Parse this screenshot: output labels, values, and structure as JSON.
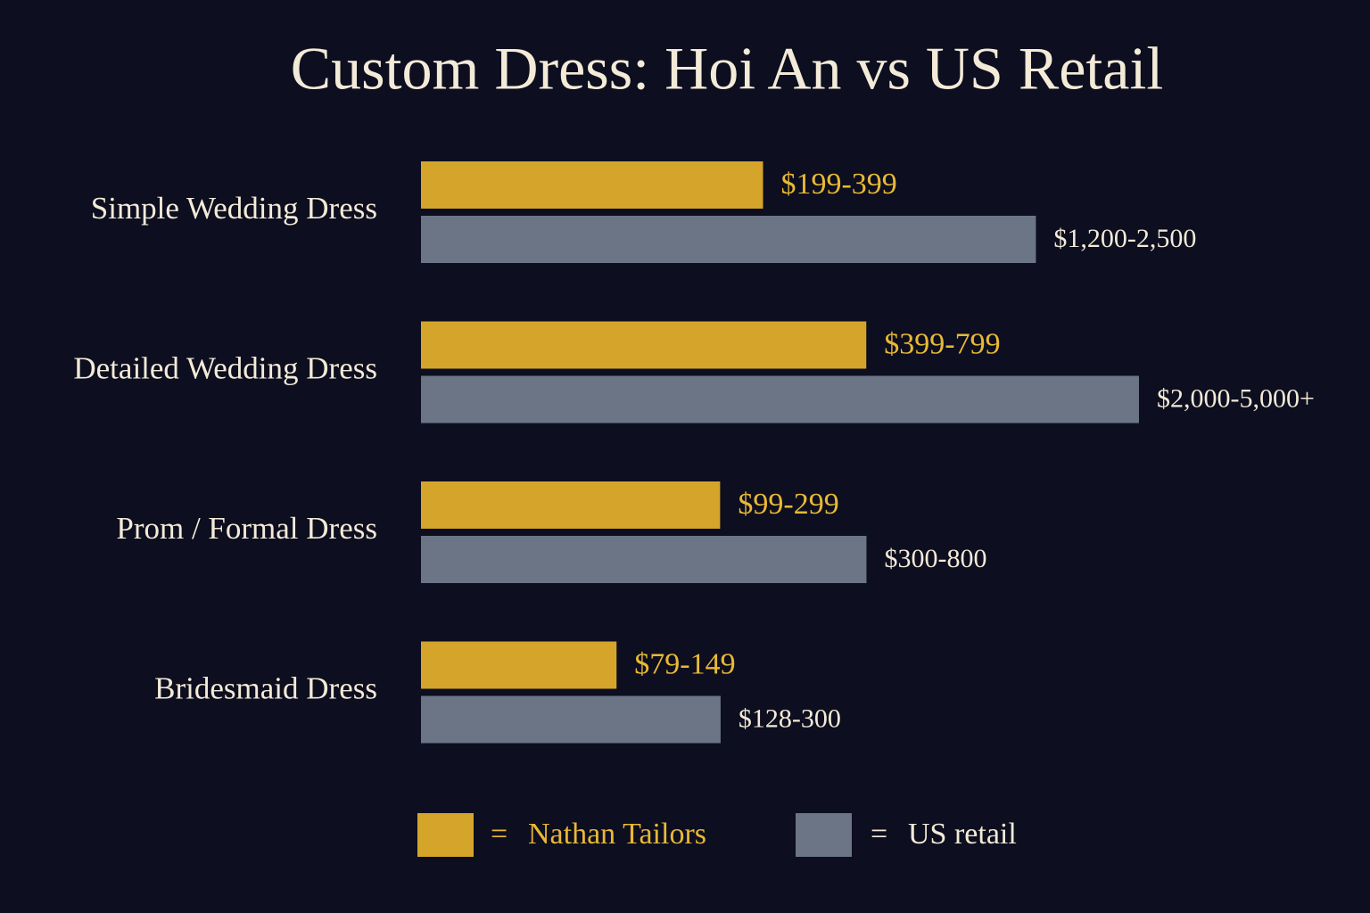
{
  "chart_data": {
    "type": "bar",
    "orientation": "horizontal",
    "title": "Custom Dress: Hoi An vs US Retail",
    "categories": [
      "Simple Wedding Dress",
      "Detailed Wedding Dress",
      "Prom / Formal Dress",
      "Bridesmaid Dress"
    ],
    "series": [
      {
        "name": "Nathan Tailors",
        "color": "#d4a52a",
        "values": [
          [
            199,
            399
          ],
          [
            399,
            799
          ],
          [
            99,
            299
          ],
          [
            79,
            149
          ]
        ],
        "value_labels": [
          "$199-399",
          "$399-799",
          "$99-299",
          "$79-149"
        ]
      },
      {
        "name": "US retail",
        "color": "#6b7585",
        "values": [
          [
            1200,
            2500
          ],
          [
            2000,
            5000
          ],
          [
            300,
            800
          ],
          [
            128,
            300
          ]
        ],
        "value_labels": [
          "$1,200-2,500",
          "$2,000-5,000+",
          "$300-800",
          "$128-300"
        ]
      }
    ]
  }
}
